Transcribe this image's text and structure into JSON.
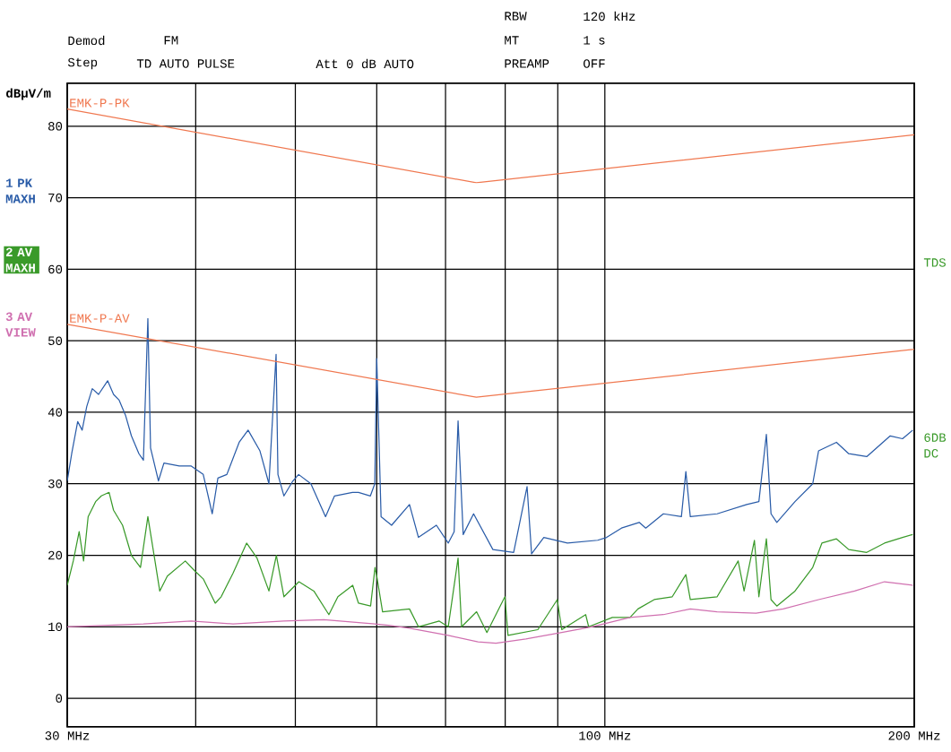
{
  "chart_data": {
    "type": "line",
    "ylabel": "dBµV/m",
    "annotations": [
      "Demod",
      "FM",
      "Step",
      "TD AUTO PULSE",
      "Att 0 dB AUTO",
      "RBW",
      "120 kHz",
      "MT",
      "1 s",
      "PREAMP",
      "OFF",
      "TDS",
      "6DB DC",
      {
        "text": "EMK-P-PK",
        "x": 30,
        "y": 82.4
      },
      {
        "text": "EMK-P-AV",
        "x": 30,
        "y": 52.3
      }
    ],
    "log": "x",
    "grid": true,
    "legend": "left",
    "xlim": [
      30,
      200
    ],
    "ylim": [
      -4,
      86
    ],
    "xticks": [
      {
        "value": 30,
        "label": "30 MHz"
      },
      {
        "value": 40,
        "label": null
      },
      {
        "value": 50,
        "label": null
      },
      {
        "value": 60,
        "label": null
      },
      {
        "value": 70,
        "label": null
      },
      {
        "value": 80,
        "label": null
      },
      {
        "value": 90,
        "label": null
      },
      {
        "value": 100,
        "label": "100 MHz"
      },
      {
        "value": 200,
        "label": "200 MHz"
      }
    ],
    "yticks": [
      0,
      10,
      20,
      30,
      40,
      50,
      60,
      70,
      80
    ],
    "series": [
      {
        "name": "1 PK MAXH",
        "color": "#2a5ca8",
        "x": [
          30,
          30.3,
          30.71,
          31.02,
          31.34,
          31.73,
          32.18,
          32.84,
          33.28,
          33.7,
          34.18,
          34.64,
          35.23,
          35.58,
          35.94,
          36.16,
          36.8,
          37.26,
          38.56,
          39.58,
          40.68,
          41.51,
          42.04,
          42.89,
          44.09,
          44.98,
          46.19,
          47.13,
          47.89,
          48.09,
          48.74,
          49.73,
          50.37,
          51.77,
          53.5,
          54.59,
          56.83,
          57.6,
          59.15,
          59.74,
          60.0,
          60.59,
          62.03,
          64.57,
          65.88,
          68.58,
          70.42,
          71.37,
          71.99,
          72.82,
          74.54,
          77.84,
          81.53,
          84.02,
          84.87,
          87.23,
          91.97,
          98.41,
          100.4,
          103.8,
          108,
          109.6,
          114,
          118.7,
          119.9,
          121.1,
          128.6,
          137.4,
          141.2,
          143.6,
          145.1,
          147,
          153.1,
          159.3,
          161.4,
          168,
          172.7,
          179.8,
          189.5,
          194.8,
          199.3
        ],
        "values": [
          30.4,
          34.2,
          38.7,
          37.5,
          40.8,
          43.3,
          42.5,
          44.4,
          42.5,
          41.7,
          39.6,
          36.7,
          34.2,
          33.3,
          53.1,
          35,
          30.4,
          32.9,
          32.5,
          32.5,
          31.3,
          25.8,
          30.8,
          31.3,
          35.8,
          37.5,
          34.6,
          30,
          48.1,
          31.3,
          28.3,
          30.4,
          31.3,
          30,
          25.4,
          28.3,
          28.8,
          28.8,
          28.3,
          30,
          47.5,
          25.4,
          24.2,
          27.1,
          22.5,
          24.2,
          21.7,
          23.3,
          38.8,
          22.9,
          25.8,
          20.8,
          20.4,
          29.6,
          20.2,
          22.5,
          21.7,
          22.1,
          22.5,
          23.8,
          24.6,
          23.8,
          25.8,
          25.4,
          31.7,
          25.4,
          25.8,
          27.1,
          27.5,
          36.9,
          25.8,
          24.6,
          27.5,
          30,
          34.6,
          35.8,
          34.2,
          33.8,
          36.7,
          36.3,
          37.5
        ]
      },
      {
        "name": "2 AV MAXH",
        "color": "#3a9a2a",
        "x": [
          30,
          30.41,
          30.81,
          31.12,
          31.44,
          31.97,
          32.38,
          32.95,
          33.28,
          33.96,
          34.64,
          35.35,
          35.94,
          36.52,
          36.91,
          37.54,
          39.08,
          39.87,
          40.68,
          41.79,
          42.35,
          43.49,
          44.83,
          45.89,
          47.13,
          47.92,
          48.74,
          50.4,
          52.12,
          53.9,
          55,
          56.86,
          57.6,
          59.18,
          59.77,
          60.0,
          60.79,
          64.57,
          65.88,
          69.02,
          70.42,
          71.99,
          72.57,
          75.04,
          76.8,
          79.96,
          80.51,
          86.07,
          89.9,
          90.81,
          95.8,
          96.45,
          101.7,
          105.8,
          107.7,
          111.7,
          116.3,
          119.9,
          121.1,
          128.6,
          134.8,
          136.6,
          139.8,
          141.2,
          143.6,
          145.1,
          147,
          153.1,
          159.3,
          162.6,
          168,
          172.7,
          179.8,
          187.1,
          194.8,
          199.3
        ],
        "values": [
          15.8,
          19.2,
          23.3,
          19.2,
          25.4,
          27.5,
          28.3,
          28.8,
          26.3,
          24.2,
          20,
          18.3,
          25.4,
          19.2,
          15,
          17.1,
          19.2,
          17.9,
          16.7,
          13.3,
          14.2,
          17.5,
          21.7,
          19.6,
          15,
          20,
          14.2,
          16.3,
          15,
          11.7,
          14.2,
          15.8,
          13.3,
          12.9,
          18.3,
          17.1,
          12.1,
          12.5,
          10,
          10.8,
          10,
          19.6,
          10,
          12.1,
          9.2,
          14.2,
          8.8,
          9.6,
          13.8,
          9.6,
          11.7,
          10,
          11.3,
          11.3,
          12.5,
          13.8,
          14.2,
          17.3,
          13.8,
          14.2,
          19.2,
          15,
          22.1,
          14.2,
          22.3,
          13.8,
          12.9,
          15,
          18.3,
          21.7,
          22.3,
          20.8,
          20.4,
          21.7,
          22.5,
          22.9
        ]
      },
      {
        "name": "3 AV VIEW",
        "color": "#d070b0",
        "x": [
          30,
          35.58,
          39.6,
          43.49,
          48.74,
          53.3,
          59.74,
          61.6,
          64.57,
          70.42,
          75.29,
          78.36,
          83.8,
          90.81,
          97.1,
          105.8,
          114,
          121.1,
          128.6,
          140.3,
          149.1,
          161.4,
          175,
          187.1,
          199.3
        ],
        "values": [
          10,
          10.4,
          10.8,
          10.4,
          10.8,
          11,
          10.4,
          10.2,
          9.8,
          8.8,
          7.9,
          7.7,
          8.3,
          9.2,
          10,
          11.3,
          11.7,
          12.5,
          12.1,
          11.9,
          12.5,
          13.8,
          15,
          16.3,
          15.8
        ]
      },
      {
        "color": "#f07850",
        "x": [
          30,
          75,
          200
        ],
        "values": [
          82.4,
          72.1,
          78.8
        ]
      },
      {
        "color": "#f07850",
        "x": [
          30,
          75,
          200
        ],
        "values": [
          52.3,
          42.1,
          48.8
        ]
      }
    ]
  }
}
